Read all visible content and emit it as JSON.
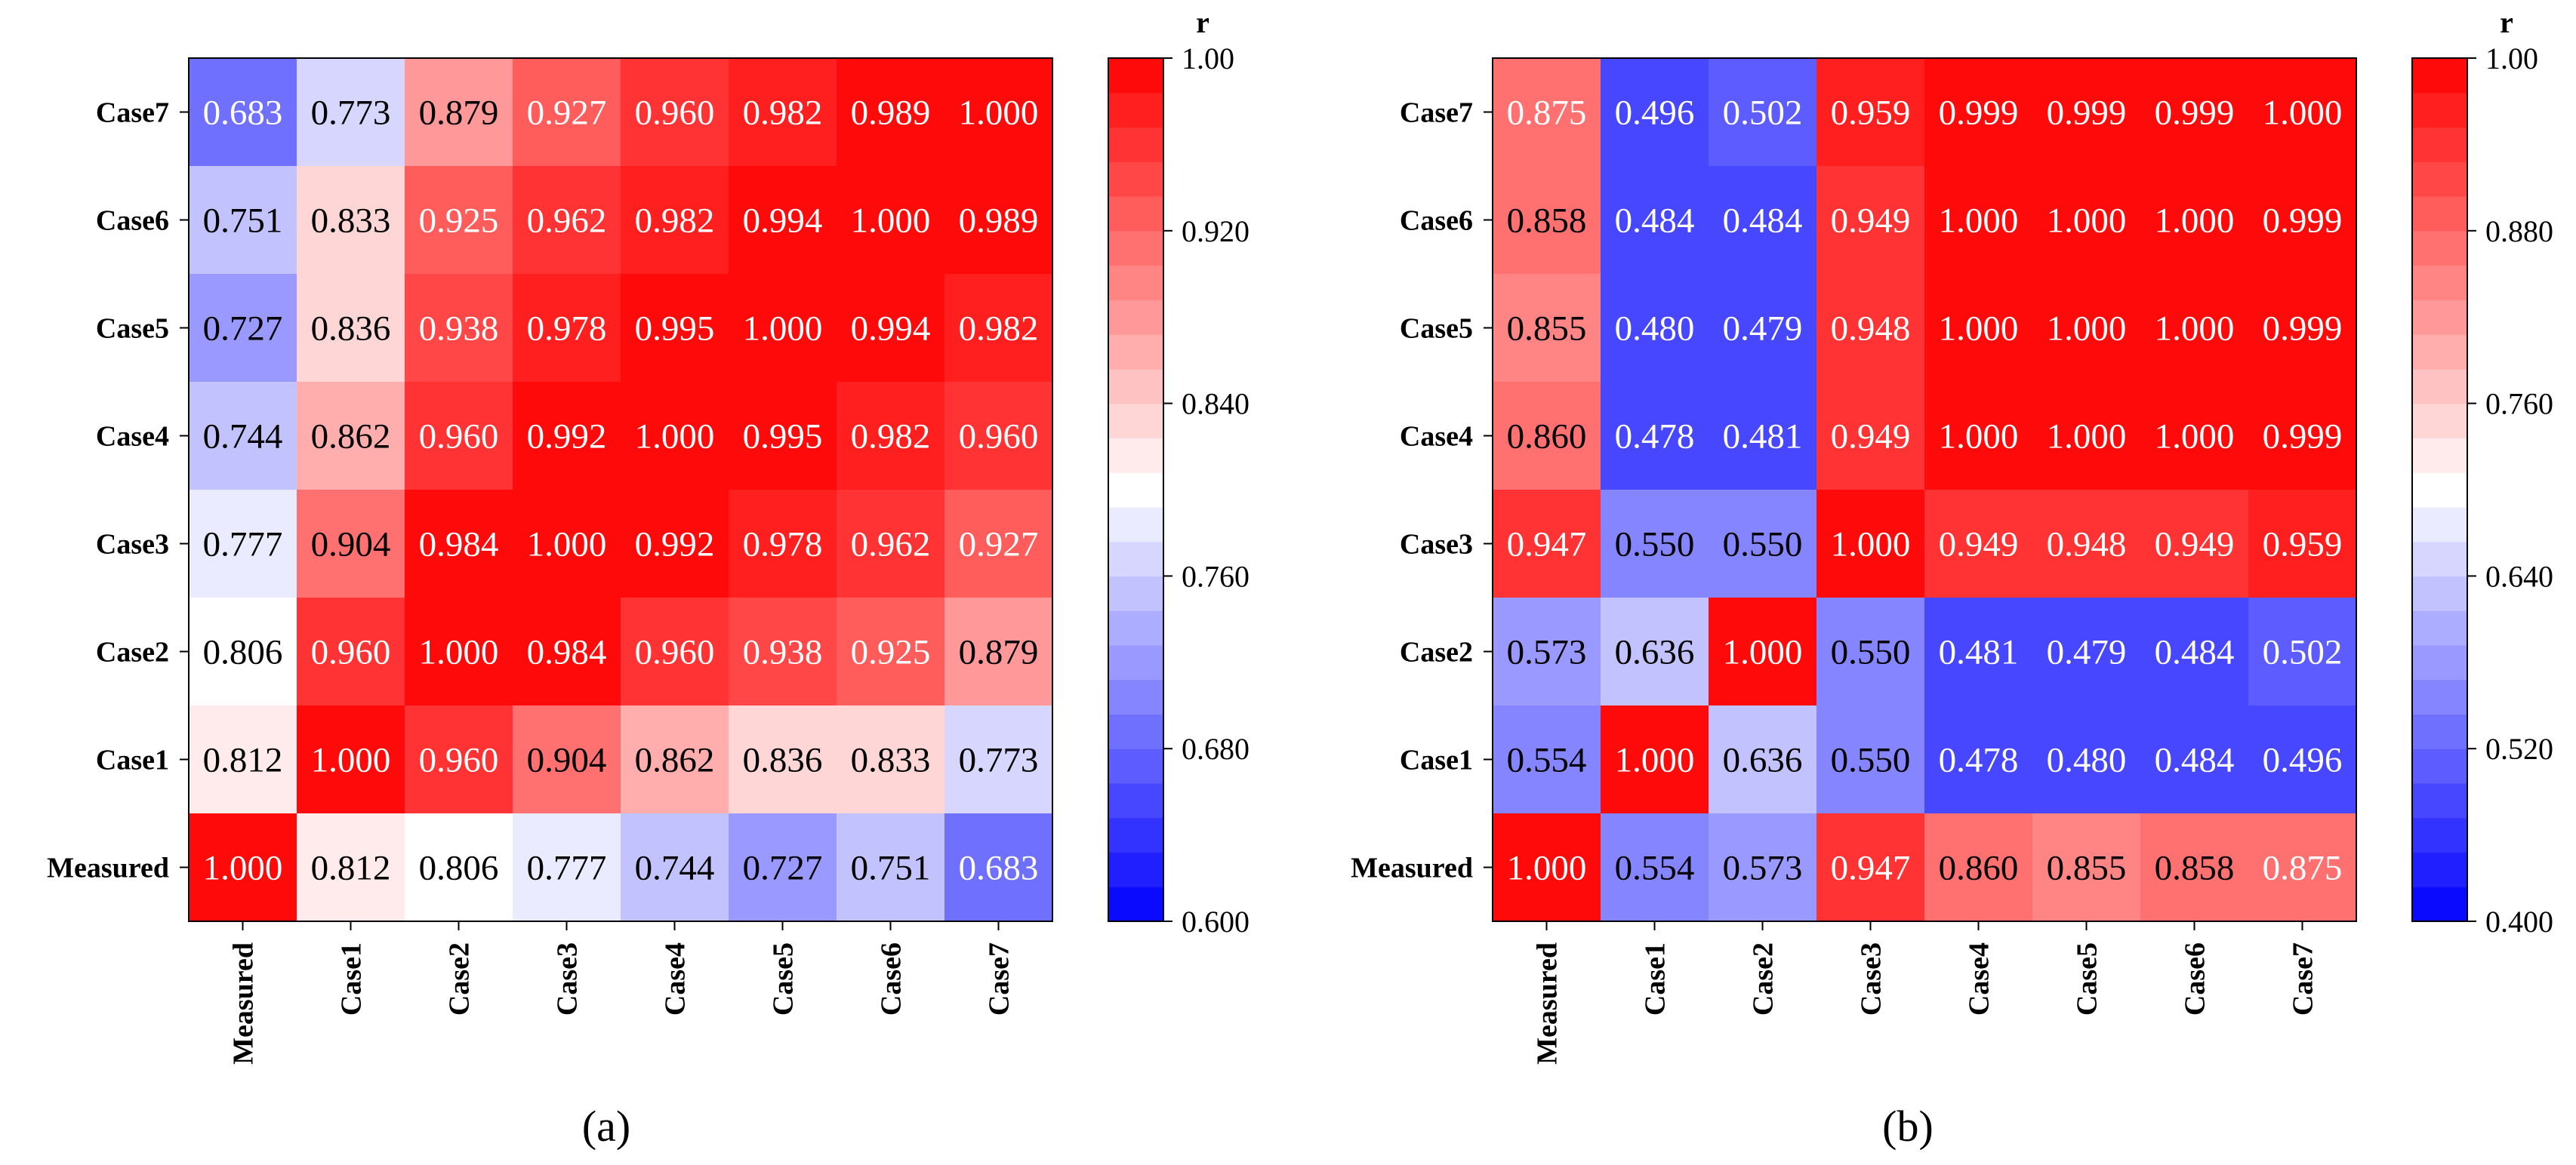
{
  "chart_data": [
    {
      "type": "heatmap",
      "panel_label": "(a)",
      "x_categories": [
        "Measured",
        "Case1",
        "Case2",
        "Case3",
        "Case4",
        "Case5",
        "Case6",
        "Case7"
      ],
      "y_categories_top_to_bottom": [
        "Case7",
        "Case6",
        "Case5",
        "Case4",
        "Case3",
        "Case2",
        "Case1",
        "Measured"
      ],
      "values": [
        [
          "0.683",
          "0.773",
          "0.879",
          "0.927",
          "0.960",
          "0.982",
          "0.989",
          "1.000"
        ],
        [
          "0.751",
          "0.833",
          "0.925",
          "0.962",
          "0.982",
          "0.994",
          "1.000",
          "0.989"
        ],
        [
          "0.727",
          "0.836",
          "0.938",
          "0.978",
          "0.995",
          "1.000",
          "0.994",
          "0.982"
        ],
        [
          "0.744",
          "0.862",
          "0.960",
          "0.992",
          "1.000",
          "0.995",
          "0.982",
          "0.960"
        ],
        [
          "0.777",
          "0.904",
          "0.984",
          "1.000",
          "0.992",
          "0.978",
          "0.962",
          "0.927"
        ],
        [
          "0.806",
          "0.960",
          "1.000",
          "0.984",
          "0.960",
          "0.938",
          "0.925",
          "0.879"
        ],
        [
          "0.812",
          "1.000",
          "0.960",
          "0.904",
          "0.862",
          "0.836",
          "0.833",
          "0.773"
        ],
        [
          "1.000",
          "0.812",
          "0.806",
          "0.777",
          "0.744",
          "0.727",
          "0.751",
          "0.683"
        ]
      ],
      "colorbar": {
        "title": "r",
        "range": [
          0.6,
          1.0
        ],
        "ticks": [
          "1.00",
          "0.920",
          "0.840",
          "0.760",
          "0.680",
          "0.600"
        ]
      }
    },
    {
      "type": "heatmap",
      "panel_label": "(b)",
      "x_categories": [
        "Measured",
        "Case1",
        "Case2",
        "Case3",
        "Case4",
        "Case5",
        "Case6",
        "Case7"
      ],
      "y_categories_top_to_bottom": [
        "Case7",
        "Case6",
        "Case5",
        "Case4",
        "Case3",
        "Case2",
        "Case1",
        "Measured"
      ],
      "values": [
        [
          "0.875",
          "0.496",
          "0.502",
          "0.959",
          "0.999",
          "0.999",
          "0.999",
          "1.000"
        ],
        [
          "0.858",
          "0.484",
          "0.484",
          "0.949",
          "1.000",
          "1.000",
          "1.000",
          "0.999"
        ],
        [
          "0.855",
          "0.480",
          "0.479",
          "0.948",
          "1.000",
          "1.000",
          "1.000",
          "0.999"
        ],
        [
          "0.860",
          "0.478",
          "0.481",
          "0.949",
          "1.000",
          "1.000",
          "1.000",
          "0.999"
        ],
        [
          "0.947",
          "0.550",
          "0.550",
          "1.000",
          "0.949",
          "0.948",
          "0.949",
          "0.959"
        ],
        [
          "0.573",
          "0.636",
          "1.000",
          "0.550",
          "0.481",
          "0.479",
          "0.484",
          "0.502"
        ],
        [
          "0.554",
          "1.000",
          "0.636",
          "0.550",
          "0.478",
          "0.480",
          "0.484",
          "0.496"
        ],
        [
          "1.000",
          "0.554",
          "0.573",
          "0.947",
          "0.860",
          "0.855",
          "0.858",
          "0.875"
        ]
      ],
      "colorbar": {
        "title": "r",
        "range": [
          0.4,
          1.0
        ],
        "ticks": [
          "1.00",
          "0.880",
          "0.760",
          "0.640",
          "0.520",
          "0.400"
        ]
      }
    }
  ]
}
